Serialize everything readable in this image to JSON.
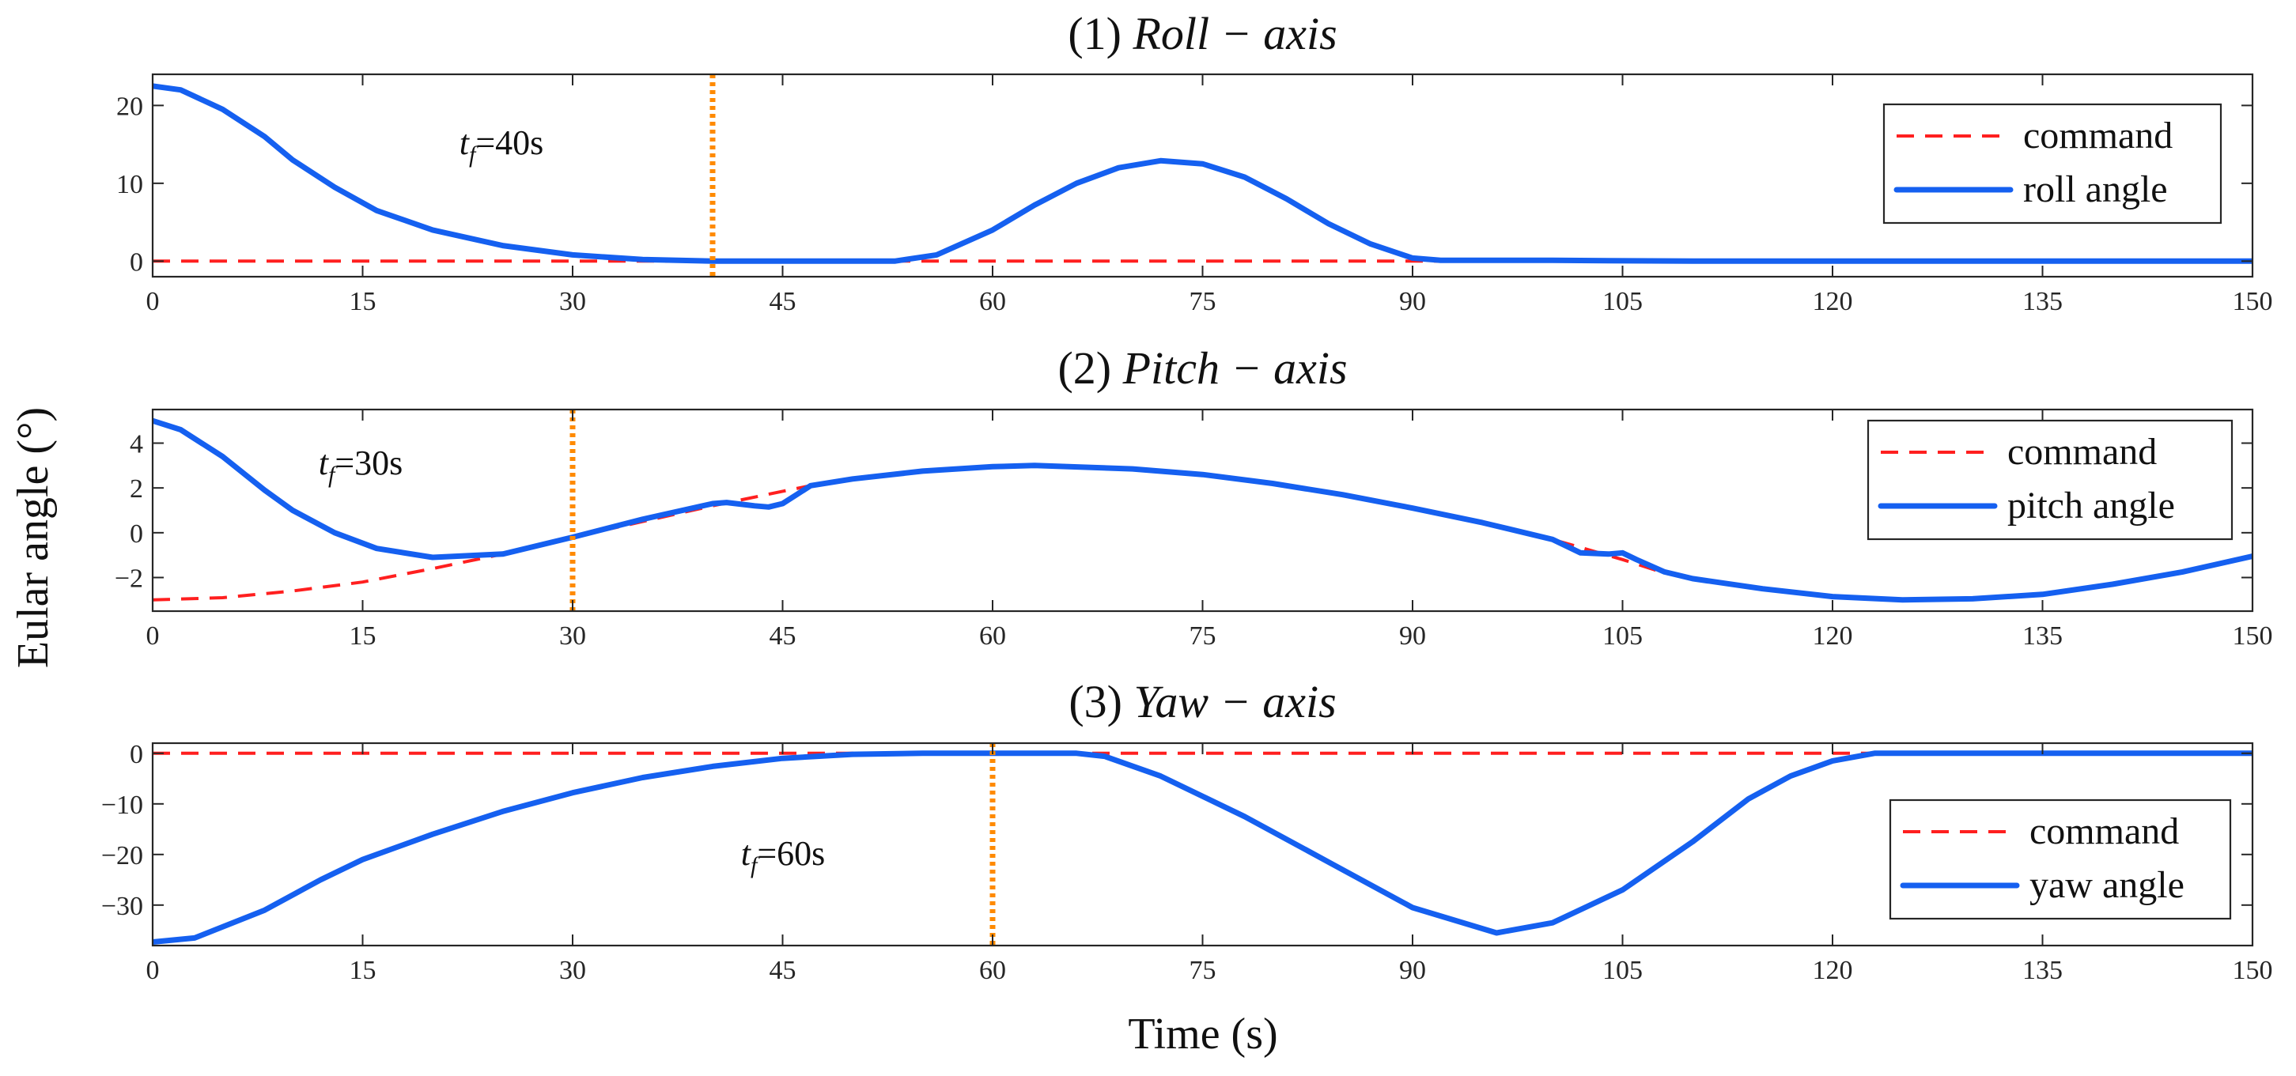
{
  "chart_data": {
    "type": "line",
    "ylabel": "Eular angle (°)",
    "xlabel": "Time (s)",
    "xlim": [
      0,
      150
    ],
    "xticks": [
      0,
      15,
      30,
      45,
      60,
      75,
      90,
      105,
      120,
      135,
      150
    ],
    "colors": {
      "command": "#ff1f1f",
      "response": "#1560f0",
      "tf_marker": "#ff8a00"
    },
    "panels": [
      {
        "title_prefix": "(1)",
        "title_axis": "Roll − axis",
        "ylim": [
          -2,
          24
        ],
        "yticks": [
          0,
          10,
          20
        ],
        "tf_label_main": "t",
        "tf_label_sub": "f",
        "tf_label_value": "=40s",
        "tf_time": 40,
        "legend": [
          "command",
          "roll angle"
        ],
        "series": [
          {
            "name": "command",
            "style": "dashed",
            "x": [
              0,
              150
            ],
            "y": [
              0,
              0
            ]
          },
          {
            "name": "roll angle",
            "style": "solid",
            "x": [
              0,
              2,
              5,
              8,
              10,
              13,
              16,
              20,
              25,
              30,
              35,
              40,
              45,
              50,
              53,
              56,
              60,
              63,
              66,
              69,
              72,
              75,
              78,
              81,
              84,
              87,
              90,
              92,
              100,
              110,
              150
            ],
            "y": [
              22.5,
              22,
              19.5,
              16,
              13,
              9.5,
              6.5,
              4,
              2,
              0.8,
              0.2,
              0,
              0,
              0,
              0,
              0.8,
              4,
              7.2,
              10,
              12,
              12.9,
              12.5,
              10.8,
              8,
              4.8,
              2.2,
              0.4,
              0.1,
              0.1,
              0,
              0
            ]
          }
        ]
      },
      {
        "title_prefix": "(2)",
        "title_axis": "Pitch − axis",
        "ylim": [
          -3.5,
          5.5
        ],
        "yticks": [
          -2,
          0,
          2,
          4
        ],
        "tf_label_main": "t",
        "tf_label_sub": "f",
        "tf_label_value": "=30s",
        "tf_time": 30,
        "legend": [
          "command",
          "pitch angle"
        ],
        "series": [
          {
            "name": "command",
            "style": "dashed",
            "x": [
              0,
              5,
              10,
              15,
              20,
              25,
              30,
              35,
              40,
              45,
              47,
              50,
              55,
              60,
              63,
              70,
              75,
              80,
              85,
              90,
              95,
              100,
              105,
              108,
              110,
              115,
              120,
              125,
              130,
              135,
              140,
              145,
              150
            ],
            "y": [
              -3,
              -2.9,
              -2.6,
              -2.2,
              -1.6,
              -0.95,
              -0.2,
              0.5,
              1.2,
              1.85,
              2.1,
              2.4,
              2.75,
              2.95,
              3.0,
              2.85,
              2.6,
              2.2,
              1.7,
              1.1,
              0.45,
              -0.3,
              -1.2,
              -1.8,
              -2.05,
              -2.5,
              -2.85,
              -3.0,
              -2.95,
              -2.75,
              -2.3,
              -1.75,
              -1.05
            ]
          },
          {
            "name": "pitch angle",
            "style": "solid",
            "x": [
              0,
              2,
              5,
              8,
              10,
              13,
              16,
              20,
              25,
              30,
              35,
              40,
              41,
              43,
              44,
              45,
              46,
              47,
              50,
              55,
              60,
              63,
              70,
              75,
              80,
              85,
              90,
              95,
              100,
              102,
              104,
              105,
              106,
              108,
              110,
              115,
              120,
              125,
              130,
              135,
              140,
              145,
              150
            ],
            "y": [
              5,
              4.6,
              3.4,
              1.9,
              1.0,
              0,
              -0.7,
              -1.1,
              -0.95,
              -0.2,
              0.6,
              1.3,
              1.35,
              1.2,
              1.15,
              1.3,
              1.7,
              2.1,
              2.4,
              2.75,
              2.95,
              3.0,
              2.85,
              2.6,
              2.2,
              1.7,
              1.1,
              0.45,
              -0.3,
              -0.9,
              -0.95,
              -0.9,
              -1.2,
              -1.75,
              -2.05,
              -2.5,
              -2.85,
              -3.0,
              -2.95,
              -2.75,
              -2.3,
              -1.75,
              -1.05
            ]
          }
        ]
      },
      {
        "title_prefix": "(3)",
        "title_axis": "Yaw − axis",
        "ylim": [
          -38,
          2
        ],
        "yticks": [
          -30,
          -20,
          -10,
          0
        ],
        "tf_label_main": "t",
        "tf_label_sub": "f",
        "tf_label_value": "=60s",
        "tf_time": 60,
        "legend": [
          "command",
          "yaw angle"
        ],
        "series": [
          {
            "name": "command",
            "style": "dashed",
            "x": [
              0,
              150
            ],
            "y": [
              0,
              0
            ]
          },
          {
            "name": "yaw angle",
            "style": "solid",
            "x": [
              0,
              3,
              8,
              12,
              15,
              20,
              25,
              30,
              35,
              40,
              45,
              50,
              55,
              60,
              66,
              68,
              72,
              78,
              84,
              90,
              96,
              100,
              105,
              110,
              114,
              117,
              120,
              123,
              150
            ],
            "y": [
              -37.3,
              -36.5,
              -31,
              -25,
              -21,
              -16,
              -11.5,
              -7.8,
              -4.8,
              -2.6,
              -1.0,
              -0.2,
              0,
              0,
              0,
              -0.6,
              -4.5,
              -12.5,
              -21.5,
              -30.5,
              -35.5,
              -33.5,
              -27,
              -17.5,
              -9,
              -4.5,
              -1.5,
              0,
              0
            ]
          }
        ]
      }
    ]
  }
}
